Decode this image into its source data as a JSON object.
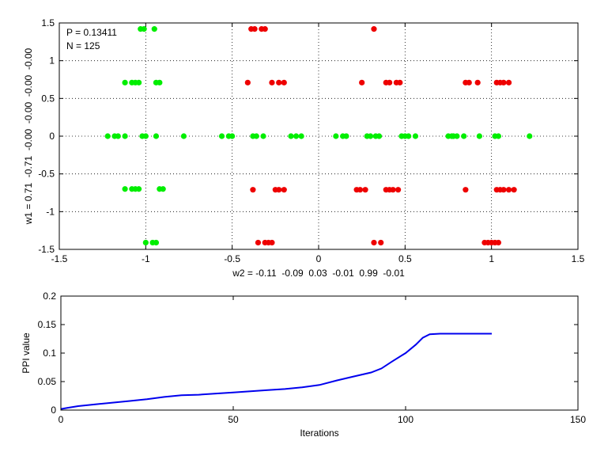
{
  "chart_data": [
    {
      "type": "scatter",
      "xlabel": "w2 = -0.11  -0.09  0.03  -0.01  0.99  -0.01",
      "ylabel": "w1 = 0.71  -0.71  -0.00  -0.00  -0.00  -0.00",
      "xlim": [
        -1.5,
        1.5
      ],
      "ylim": [
        -1.5,
        1.5
      ],
      "xticks": [
        "-1.5",
        "-1",
        "-0.5",
        "0",
        "0.5",
        "1",
        "1.5"
      ],
      "yticks": [
        "-1.5",
        "-1",
        "-0.5",
        "0",
        "0.5",
        "1",
        "1.5"
      ],
      "grid": true,
      "annotations": [
        "P = 0.13411",
        "N = 125"
      ],
      "colors": [
        "#00ee00",
        "#ee0000"
      ],
      "series": [
        {
          "color": "#00ee00",
          "points": [
            [
              -1.03,
              1.42
            ],
            [
              -1.01,
              1.42
            ],
            [
              -0.95,
              1.42
            ],
            [
              -1.12,
              0.71
            ],
            [
              -1.08,
              0.71
            ],
            [
              -1.06,
              0.71
            ],
            [
              -1.04,
              0.71
            ],
            [
              -0.94,
              0.71
            ],
            [
              -0.92,
              0.71
            ],
            [
              -1.22,
              0.0
            ],
            [
              -1.18,
              0.0
            ],
            [
              -1.16,
              0.0
            ],
            [
              -1.12,
              0.0
            ],
            [
              -1.02,
              0.0
            ],
            [
              -1.0,
              0.0
            ],
            [
              -0.94,
              0.0
            ],
            [
              -0.78,
              0.0
            ],
            [
              -0.56,
              0.0
            ],
            [
              -0.52,
              0.0
            ],
            [
              -0.5,
              0.0
            ],
            [
              -0.38,
              0.0
            ],
            [
              -0.36,
              0.0
            ],
            [
              -0.32,
              0.0
            ],
            [
              -0.16,
              0.0
            ],
            [
              -0.13,
              0.0
            ],
            [
              -0.1,
              0.0
            ],
            [
              0.1,
              0.0
            ],
            [
              0.14,
              0.0
            ],
            [
              0.16,
              0.0
            ],
            [
              0.28,
              0.0
            ],
            [
              0.3,
              0.0
            ],
            [
              0.33,
              0.0
            ],
            [
              0.35,
              0.0
            ],
            [
              0.48,
              0.0
            ],
            [
              0.5,
              0.0
            ],
            [
              0.52,
              0.0
            ],
            [
              0.56,
              0.0
            ],
            [
              0.75,
              0.0
            ],
            [
              0.77,
              0.0
            ],
            [
              0.78,
              0.0
            ],
            [
              0.8,
              0.0
            ],
            [
              0.84,
              0.0
            ],
            [
              0.93,
              0.0
            ],
            [
              1.02,
              0.0
            ],
            [
              1.04,
              0.0
            ],
            [
              1.22,
              0.0
            ],
            [
              -1.12,
              -0.7
            ],
            [
              -1.08,
              -0.7
            ],
            [
              -1.06,
              -0.7
            ],
            [
              -1.04,
              -0.7
            ],
            [
              -0.92,
              -0.7
            ],
            [
              -0.9,
              -0.7
            ],
            [
              -1.0,
              -1.41
            ],
            [
              -0.96,
              -1.41
            ],
            [
              -0.94,
              -1.41
            ]
          ]
        },
        {
          "color": "#ee0000",
          "points": [
            [
              -0.39,
              1.42
            ],
            [
              -0.37,
              1.42
            ],
            [
              -0.33,
              1.42
            ],
            [
              -0.31,
              1.42
            ],
            [
              0.32,
              1.42
            ],
            [
              -0.41,
              0.71
            ],
            [
              -0.27,
              0.71
            ],
            [
              -0.23,
              0.71
            ],
            [
              -0.2,
              0.71
            ],
            [
              0.25,
              0.71
            ],
            [
              0.39,
              0.71
            ],
            [
              0.41,
              0.71
            ],
            [
              0.45,
              0.71
            ],
            [
              0.47,
              0.71
            ],
            [
              0.85,
              0.71
            ],
            [
              0.87,
              0.71
            ],
            [
              0.92,
              0.71
            ],
            [
              1.03,
              0.71
            ],
            [
              1.05,
              0.71
            ],
            [
              1.07,
              0.71
            ],
            [
              1.1,
              0.71
            ],
            [
              -0.38,
              -0.71
            ],
            [
              -0.25,
              -0.71
            ],
            [
              -0.23,
              -0.71
            ],
            [
              -0.2,
              -0.71
            ],
            [
              0.22,
              -0.71
            ],
            [
              0.24,
              -0.71
            ],
            [
              0.27,
              -0.71
            ],
            [
              0.39,
              -0.71
            ],
            [
              0.41,
              -0.71
            ],
            [
              0.43,
              -0.71
            ],
            [
              0.46,
              -0.71
            ],
            [
              0.85,
              -0.71
            ],
            [
              1.03,
              -0.71
            ],
            [
              1.05,
              -0.71
            ],
            [
              1.07,
              -0.71
            ],
            [
              1.1,
              -0.71
            ],
            [
              1.13,
              -0.71
            ],
            [
              -0.35,
              -1.41
            ],
            [
              -0.31,
              -1.41
            ],
            [
              -0.29,
              -1.41
            ],
            [
              -0.27,
              -1.41
            ],
            [
              0.32,
              -1.41
            ],
            [
              0.36,
              -1.41
            ],
            [
              0.96,
              -1.41
            ],
            [
              0.98,
              -1.41
            ],
            [
              1.0,
              -1.41
            ],
            [
              1.02,
              -1.41
            ],
            [
              1.04,
              -1.41
            ]
          ]
        }
      ]
    },
    {
      "type": "line",
      "xlabel": "Iterations",
      "ylabel": "PPI value",
      "xlim": [
        0,
        150
      ],
      "ylim": [
        0,
        0.2
      ],
      "xticks": [
        "0",
        "50",
        "100",
        "150"
      ],
      "yticks": [
        "0",
        "0.05",
        "0.1",
        "0.15",
        "0.2"
      ],
      "grid": false,
      "color": "#0000ee",
      "series": [
        {
          "x": [
            0,
            2,
            5,
            10,
            15,
            20,
            25,
            30,
            35,
            40,
            45,
            50,
            55,
            60,
            65,
            70,
            75,
            80,
            85,
            90,
            93,
            96,
            100,
            103,
            105,
            107,
            110,
            115,
            120,
            125
          ],
          "y": [
            0.002,
            0.004,
            0.007,
            0.01,
            0.013,
            0.016,
            0.019,
            0.023,
            0.026,
            0.027,
            0.029,
            0.031,
            0.033,
            0.035,
            0.037,
            0.04,
            0.044,
            0.052,
            0.059,
            0.066,
            0.073,
            0.085,
            0.1,
            0.115,
            0.127,
            0.133,
            0.134,
            0.134,
            0.134,
            0.134
          ]
        }
      ]
    }
  ]
}
